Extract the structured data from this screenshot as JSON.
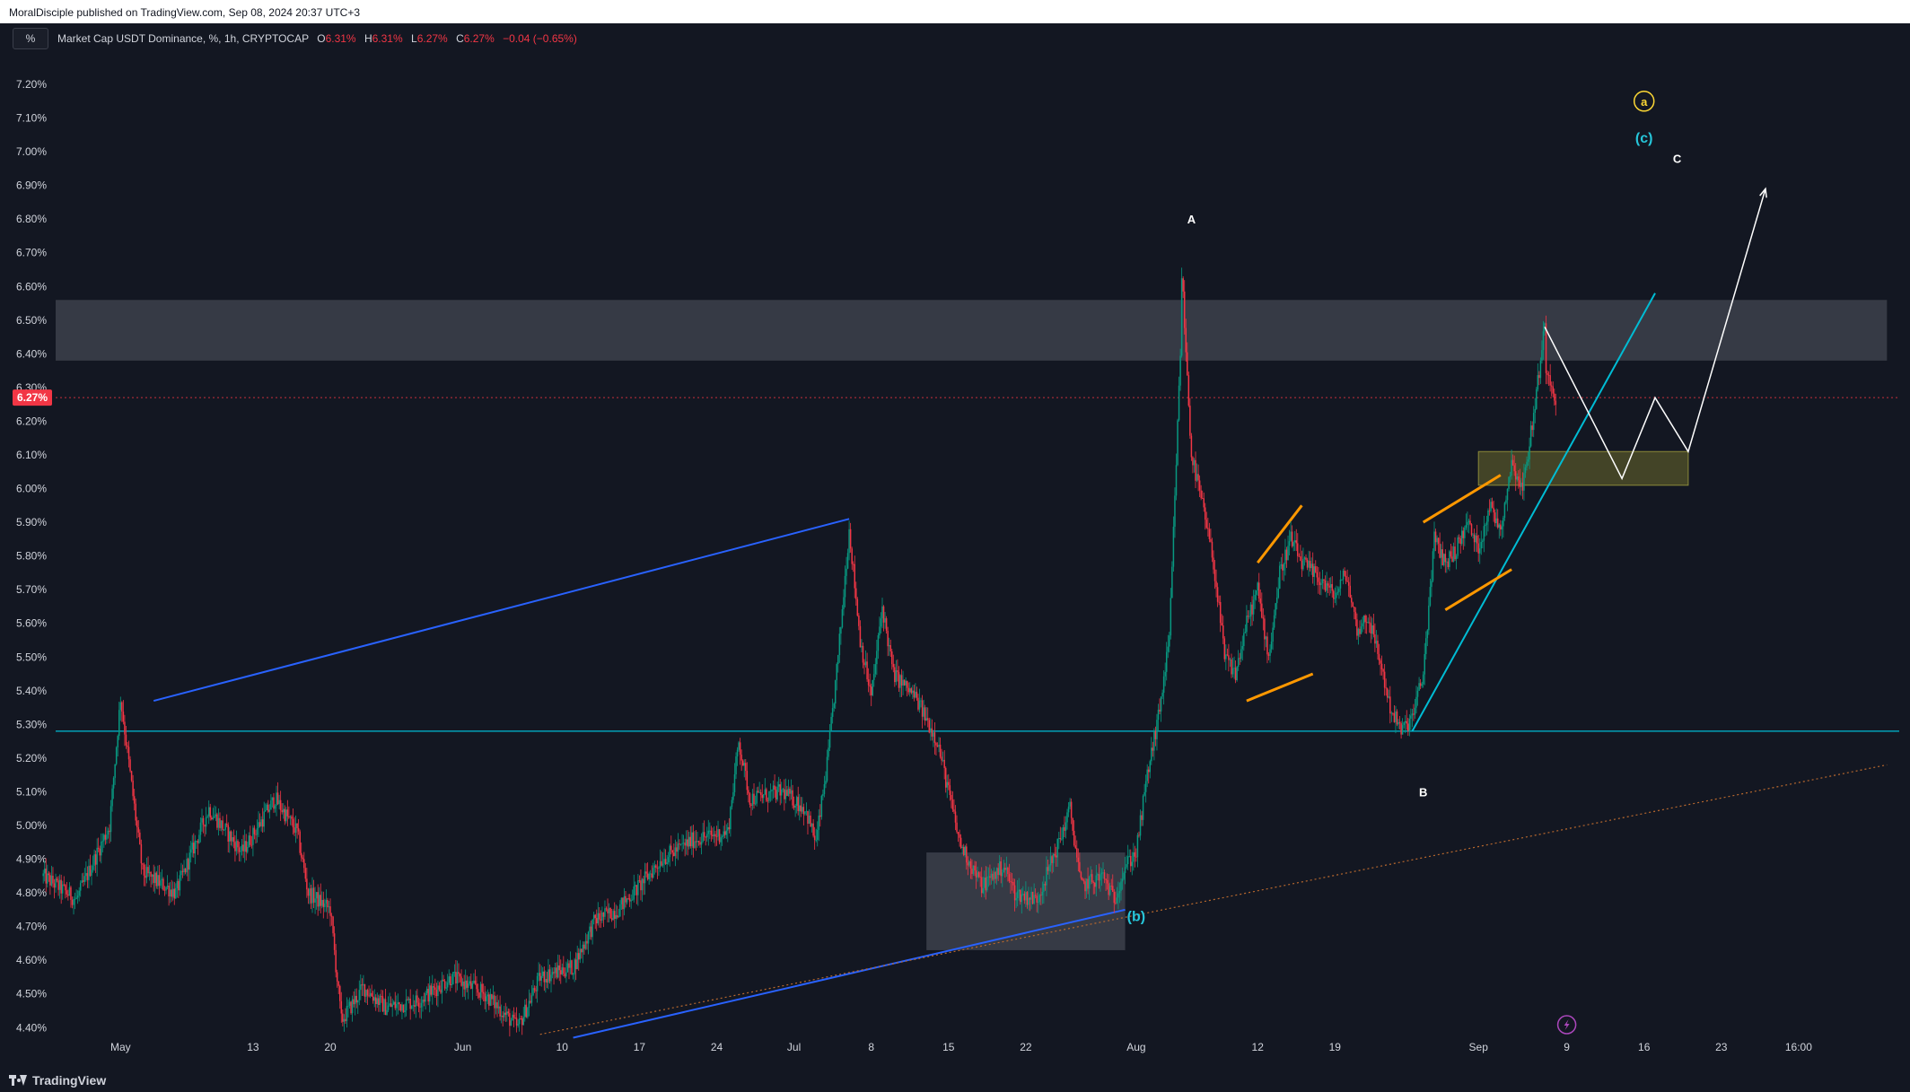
{
  "header": {
    "published_text": "MoralDisciple published on TradingView.com, Sep 08, 2024 20:37 UTC+3"
  },
  "legend": {
    "scale_button": "%",
    "symbol": "Market Cap USDT Dominance, %, 1h, CRYPTOCAP",
    "o_label": "O",
    "o_value": "6.31%",
    "h_label": "H",
    "h_value": "6.31%",
    "l_label": "L",
    "l_value": "6.27%",
    "c_label": "C",
    "c_value": "6.27%",
    "change": "−0.04 (−0.65%)"
  },
  "footer": {
    "brand": "TradingView"
  },
  "colors": {
    "background": "#131722",
    "candle_up": "#089981",
    "candle_down": "#f23645",
    "trendline_blue": "#2962ff",
    "level_cyan": "#00bcd4",
    "orange": "#ff9800",
    "dotted_orange": "#b8682e",
    "white_projection": "#ffffff",
    "yellow_zone": "#6b6a2c",
    "grey_zone": "#787b86",
    "wave_a_yellow": "#fdd835",
    "wave_c_cyan": "#26c6da",
    "price_tag": "#f23645"
  },
  "chart_data": {
    "type": "candlestick",
    "symbol": "Market Cap USDT Dominance, %, 1h, CRYPTOCAP",
    "ylim": [
      4.37,
      7.27
    ],
    "y_unit": "%",
    "y_ticks": [
      "7.20%",
      "7.10%",
      "7.00%",
      "6.90%",
      "6.80%",
      "6.70%",
      "6.60%",
      "6.50%",
      "6.40%",
      "6.30%",
      "6.20%",
      "6.10%",
      "6.00%",
      "5.90%",
      "5.80%",
      "5.70%",
      "5.60%",
      "5.50%",
      "5.40%",
      "5.30%",
      "5.20%",
      "5.10%",
      "5.00%",
      "4.90%",
      "4.80%",
      "4.70%",
      "4.60%",
      "4.50%",
      "4.40%"
    ],
    "x_ticks": [
      {
        "date": "2024-05-01",
        "label": "May"
      },
      {
        "date": "2024-05-13",
        "label": "13"
      },
      {
        "date": "2024-05-20",
        "label": "20"
      },
      {
        "date": "2024-06-01",
        "label": "Jun"
      },
      {
        "date": "2024-06-10",
        "label": "10"
      },
      {
        "date": "2024-06-17",
        "label": "17"
      },
      {
        "date": "2024-06-24",
        "label": "24"
      },
      {
        "date": "2024-07-01",
        "label": "Jul"
      },
      {
        "date": "2024-07-08",
        "label": "8"
      },
      {
        "date": "2024-07-15",
        "label": "15"
      },
      {
        "date": "2024-07-22",
        "label": "22"
      },
      {
        "date": "2024-08-01",
        "label": "Aug"
      },
      {
        "date": "2024-08-12",
        "label": "12"
      },
      {
        "date": "2024-08-19",
        "label": "19"
      },
      {
        "date": "2024-09-01",
        "label": "Sep"
      },
      {
        "date": "2024-09-09",
        "label": "9"
      },
      {
        "date": "2024-09-16",
        "label": "16"
      },
      {
        "date": "2024-09-23",
        "label": "23"
      },
      {
        "date": "2024-09-30",
        "label": "16:00"
      }
    ],
    "last_price": 6.27,
    "last_price_label": "6.27%",
    "price_path": [
      [
        "2024-04-24",
        4.85
      ],
      [
        "2024-04-27",
        4.78
      ],
      [
        "2024-04-30",
        5.0
      ],
      [
        "2024-05-01",
        5.38
      ],
      [
        "2024-05-03",
        4.86
      ],
      [
        "2024-05-06",
        4.8
      ],
      [
        "2024-05-09",
        5.05
      ],
      [
        "2024-05-12",
        4.92
      ],
      [
        "2024-05-15",
        5.08
      ],
      [
        "2024-05-17",
        4.98
      ],
      [
        "2024-05-18",
        4.8
      ],
      [
        "2024-05-20",
        4.75
      ],
      [
        "2024-05-21",
        4.42
      ],
      [
        "2024-05-23",
        4.52
      ],
      [
        "2024-05-25",
        4.46
      ],
      [
        "2024-05-28",
        4.48
      ],
      [
        "2024-05-31",
        4.55
      ],
      [
        "2024-06-03",
        4.5
      ],
      [
        "2024-06-06",
        4.4
      ],
      [
        "2024-06-08",
        4.55
      ],
      [
        "2024-06-11",
        4.58
      ],
      [
        "2024-06-13",
        4.72
      ],
      [
        "2024-06-15",
        4.75
      ],
      [
        "2024-06-17",
        4.82
      ],
      [
        "2024-06-19",
        4.9
      ],
      [
        "2024-06-22",
        4.96
      ],
      [
        "2024-06-25",
        4.98
      ],
      [
        "2024-06-26",
        5.25
      ],
      [
        "2024-06-27",
        5.08
      ],
      [
        "2024-06-30",
        5.1
      ],
      [
        "2024-07-02",
        5.05
      ],
      [
        "2024-07-03",
        4.95
      ],
      [
        "2024-07-04",
        5.18
      ],
      [
        "2024-07-05",
        5.5
      ],
      [
        "2024-07-06",
        5.88
      ],
      [
        "2024-07-07",
        5.55
      ],
      [
        "2024-07-08",
        5.38
      ],
      [
        "2024-07-09",
        5.65
      ],
      [
        "2024-07-10",
        5.45
      ],
      [
        "2024-07-12",
        5.38
      ],
      [
        "2024-07-14",
        5.25
      ],
      [
        "2024-07-16",
        4.95
      ],
      [
        "2024-07-18",
        4.82
      ],
      [
        "2024-07-20",
        4.88
      ],
      [
        "2024-07-21",
        4.8
      ],
      [
        "2024-07-23",
        4.78
      ],
      [
        "2024-07-25",
        4.95
      ],
      [
        "2024-07-26",
        5.05
      ],
      [
        "2024-07-27",
        4.82
      ],
      [
        "2024-07-29",
        4.85
      ],
      [
        "2024-07-30",
        4.78
      ],
      [
        "2024-07-31",
        4.88
      ],
      [
        "2024-08-01",
        4.92
      ],
      [
        "2024-08-02",
        5.15
      ],
      [
        "2024-08-03",
        5.32
      ],
      [
        "2024-08-04",
        5.55
      ],
      [
        "2024-08-05",
        6.4
      ],
      [
        "2024-08-05",
        6.72
      ],
      [
        "2024-08-06",
        6.1
      ],
      [
        "2024-08-07",
        5.95
      ],
      [
        "2024-08-08",
        5.78
      ],
      [
        "2024-08-09",
        5.5
      ],
      [
        "2024-08-10",
        5.45
      ],
      [
        "2024-08-11",
        5.6
      ],
      [
        "2024-08-12",
        5.7
      ],
      [
        "2024-08-13",
        5.5
      ],
      [
        "2024-08-14",
        5.75
      ],
      [
        "2024-08-15",
        5.85
      ],
      [
        "2024-08-16",
        5.78
      ],
      [
        "2024-08-18",
        5.72
      ],
      [
        "2024-08-19",
        5.68
      ],
      [
        "2024-08-20",
        5.75
      ],
      [
        "2024-08-21",
        5.58
      ],
      [
        "2024-08-22",
        5.62
      ],
      [
        "2024-08-23",
        5.5
      ],
      [
        "2024-08-24",
        5.35
      ],
      [
        "2024-08-25",
        5.28
      ],
      [
        "2024-08-26",
        5.32
      ],
      [
        "2024-08-27",
        5.45
      ],
      [
        "2024-08-28",
        5.85
      ],
      [
        "2024-08-29",
        5.78
      ],
      [
        "2024-08-30",
        5.82
      ],
      [
        "2024-08-31",
        5.9
      ],
      [
        "2024-09-01",
        5.82
      ],
      [
        "2024-09-02",
        5.95
      ],
      [
        "2024-09-03",
        5.88
      ],
      [
        "2024-09-04",
        6.08
      ],
      [
        "2024-09-05",
        6.0
      ],
      [
        "2024-09-06",
        6.22
      ],
      [
        "2024-09-07",
        6.48
      ],
      [
        "2024-09-07",
        6.38
      ],
      [
        "2024-09-08",
        6.27
      ]
    ],
    "zones": [
      {
        "name": "resistance-zone",
        "y_range": [
          6.38,
          6.56
        ],
        "x_range": [
          "2024-04-23",
          "2024-10-08"
        ],
        "color": "#787b86"
      },
      {
        "name": "support-box-b",
        "y_range": [
          4.63,
          4.92
        ],
        "x_range": [
          "2024-07-13",
          "2024-07-31"
        ],
        "color": "#787b86"
      },
      {
        "name": "yellow-zone",
        "y_range": [
          6.01,
          6.11
        ],
        "x_range": [
          "2024-09-01",
          "2024-09-20"
        ],
        "color": "#6b6a2c"
      }
    ],
    "horizontal_levels": [
      {
        "name": "cyan-support-level",
        "value": 5.28,
        "color": "#00bcd4"
      },
      {
        "name": "last-price-line",
        "value": 6.27,
        "color": "#f23645",
        "dashed": true
      }
    ],
    "trendlines": [
      {
        "name": "blue-upper-trendline",
        "from": [
          "2024-05-04",
          5.37
        ],
        "to": [
          "2024-07-06",
          5.91
        ],
        "color": "#2962ff"
      },
      {
        "name": "blue-lower-trendline",
        "from": [
          "2024-06-11",
          4.37
        ],
        "to": [
          "2024-07-31",
          4.75
        ],
        "color": "#2962ff"
      },
      {
        "name": "cyan-rising-trendline",
        "from": [
          "2024-08-26",
          5.28
        ],
        "to": [
          "2024-09-17",
          6.58
        ],
        "color": "#00bcd4"
      },
      {
        "name": "orange-dotted-trendline",
        "from": [
          "2024-06-08",
          4.38
        ],
        "to": [
          "2024-10-08",
          5.18
        ],
        "color": "#b8682e",
        "dotted": true
      },
      {
        "name": "orange-flag-1-upper",
        "from": [
          "2024-08-12",
          5.78
        ],
        "to": [
          "2024-08-16",
          5.95
        ],
        "color": "#ff9800"
      },
      {
        "name": "orange-flag-1-lower",
        "from": [
          "2024-08-11",
          5.37
        ],
        "to": [
          "2024-08-17",
          5.45
        ],
        "color": "#ff9800"
      },
      {
        "name": "orange-flag-2-upper",
        "from": [
          "2024-08-27",
          5.9
        ],
        "to": [
          "2024-09-03",
          6.04
        ],
        "color": "#ff9800"
      },
      {
        "name": "orange-flag-2-lower",
        "from": [
          "2024-08-29",
          5.64
        ],
        "to": [
          "2024-09-04",
          5.76
        ],
        "color": "#ff9800"
      }
    ],
    "projection_path": [
      [
        "2024-09-07",
        6.48
      ],
      [
        "2024-09-14",
        6.03
      ],
      [
        "2024-09-17",
        6.27
      ],
      [
        "2024-09-20",
        6.11
      ],
      [
        "2024-09-27",
        6.89
      ]
    ],
    "annotations": [
      {
        "text": "A",
        "date": "2024-08-06",
        "value": 6.8,
        "color": "#ffffff"
      },
      {
        "text": "B",
        "date": "2024-08-27",
        "value": 5.1,
        "color": "#ffffff"
      },
      {
        "text": "C",
        "date": "2024-09-19",
        "value": 6.98,
        "color": "#ffffff"
      },
      {
        "text": "(b)",
        "date": "2024-08-01",
        "value": 4.73,
        "color": "#26c6da"
      },
      {
        "text": "(c)",
        "date": "2024-09-16",
        "value": 7.04,
        "color": "#26c6da"
      },
      {
        "text": "a",
        "date": "2024-09-16",
        "value": 7.15,
        "color": "#fdd835",
        "circled": true
      }
    ]
  }
}
